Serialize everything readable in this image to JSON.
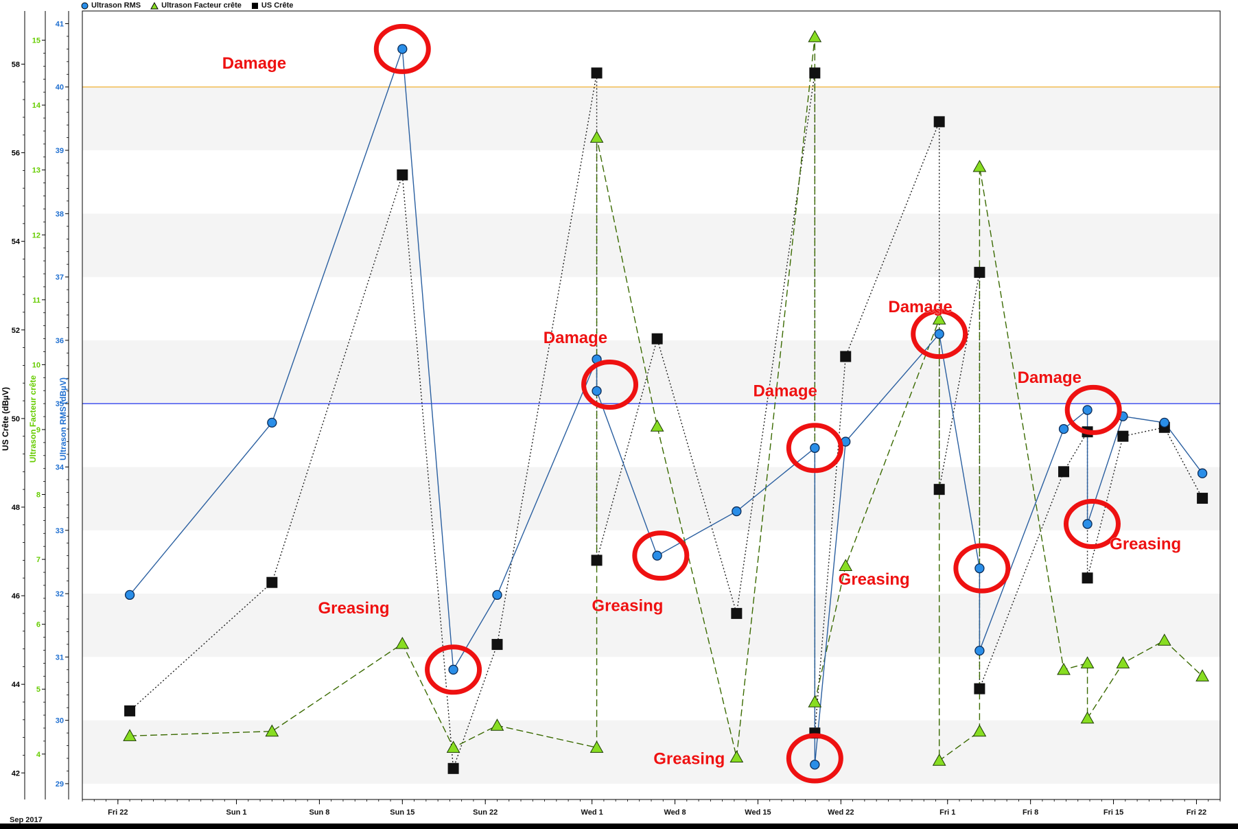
{
  "chart_data": {
    "type": "line",
    "period_label": "Sep 2017",
    "x_ticks": [
      "Fri 22",
      "Sun 1",
      "Sun 8",
      "Sun 15",
      "Sun 22",
      "Wed 1",
      "Wed 8",
      "Wed 15",
      "Wed 22",
      "Fri 1",
      "Fri 8",
      "Fri 15",
      "Fri 22"
    ],
    "x_tick_days": [
      0,
      10,
      17,
      24,
      31,
      40,
      47,
      54,
      61,
      70,
      77,
      84,
      91
    ],
    "xlim": [
      -3,
      93
    ],
    "axes": [
      {
        "key": "crete",
        "label": "US Crête (dBµV)",
        "color": "#000000",
        "ylim": [
          41.4,
          59.2
        ],
        "ticks": [
          42,
          44,
          46,
          48,
          50,
          52,
          54,
          56,
          58
        ]
      },
      {
        "key": "facteur",
        "label": "Ultrason Facteur crête",
        "color": "#66cc00",
        "ylim": [
          3.3,
          15.45
        ],
        "ticks": [
          4,
          5,
          6,
          7,
          8,
          9,
          10,
          11,
          12,
          13,
          14,
          15
        ]
      },
      {
        "key": "rms",
        "label": "Ultrason RMS (dBµV)",
        "color": "#1f6fd0",
        "ylim": [
          28.75,
          41.2
        ],
        "ticks": [
          29,
          30,
          31,
          32,
          33,
          34,
          35,
          36,
          37,
          38,
          39,
          40,
          41
        ]
      }
    ],
    "legend": [
      "Ultrason RMS",
      "Ultrason Facteur crête",
      "US Crête"
    ],
    "thresholds": [
      {
        "axis": "rms",
        "value": 40,
        "color": "#f0b030"
      },
      {
        "axis": "rms",
        "value": 35,
        "color": "#3344ee"
      }
    ],
    "series": [
      {
        "name": "Ultrason RMS",
        "axis": "rms",
        "marker": "circle",
        "color": "#2a8ee8",
        "line": "#2a5fa0",
        "dash": "",
        "points": [
          [
            1,
            31.98
          ],
          [
            13,
            34.7
          ],
          [
            24,
            40.6
          ],
          [
            28.3,
            30.8
          ],
          [
            32,
            31.98
          ],
          [
            40.4,
            35.7
          ],
          [
            40.4,
            35.2
          ],
          [
            45.5,
            32.6
          ],
          [
            52.2,
            33.3
          ],
          [
            58.8,
            34.3
          ],
          [
            58.8,
            29.3
          ],
          [
            61.4,
            34.4
          ],
          [
            69.3,
            36.1
          ],
          [
            72.7,
            32.4
          ],
          [
            72.7,
            31.1
          ],
          [
            79.8,
            34.6
          ],
          [
            81.8,
            34.9
          ],
          [
            81.8,
            33.1
          ],
          [
            84.8,
            34.8
          ],
          [
            88.3,
            34.7
          ],
          [
            91.5,
            33.9
          ]
        ]
      },
      {
        "name": "Ultrason Facteur crête",
        "axis": "facteur",
        "marker": "triangle",
        "color": "#88dd22",
        "line": "#3a6a00",
        "dash": "10,5",
        "points": [
          [
            1,
            4.28
          ],
          [
            13,
            4.35
          ],
          [
            24,
            5.7
          ],
          [
            28.3,
            4.1
          ],
          [
            32,
            4.44
          ],
          [
            40.4,
            4.1
          ],
          [
            40.4,
            13.5
          ],
          [
            45.5,
            9.05
          ],
          [
            52.2,
            3.95
          ],
          [
            58.8,
            15.05
          ],
          [
            58.8,
            4.8
          ],
          [
            61.4,
            6.9
          ],
          [
            69.3,
            10.7
          ],
          [
            69.3,
            3.9
          ],
          [
            72.7,
            4.35
          ],
          [
            72.7,
            13.05
          ],
          [
            79.8,
            5.3
          ],
          [
            81.8,
            5.4
          ],
          [
            81.8,
            4.55
          ],
          [
            84.8,
            5.4
          ],
          [
            88.3,
            5.75
          ],
          [
            91.5,
            5.2
          ]
        ]
      },
      {
        "name": "US Crête",
        "axis": "crete",
        "marker": "square",
        "color": "#111111",
        "line": "#222222",
        "dash": "2,3",
        "points": [
          [
            1,
            43.4
          ],
          [
            13,
            46.3
          ],
          [
            24,
            55.5
          ],
          [
            28.3,
            42.1
          ],
          [
            32,
            44.9
          ],
          [
            40.4,
            57.8
          ],
          [
            40.4,
            46.8
          ],
          [
            45.5,
            51.8
          ],
          [
            52.2,
            45.6
          ],
          [
            58.8,
            57.8
          ],
          [
            58.8,
            42.9
          ],
          [
            61.4,
            51.4
          ],
          [
            69.3,
            56.7
          ],
          [
            69.3,
            48.4
          ],
          [
            72.7,
            53.3
          ],
          [
            72.7,
            43.9
          ],
          [
            79.8,
            48.8
          ],
          [
            81.8,
            49.7
          ],
          [
            81.8,
            46.4
          ],
          [
            84.8,
            49.6
          ],
          [
            88.3,
            49.8
          ],
          [
            91.5,
            48.2
          ]
        ]
      }
    ],
    "annotations": [
      {
        "text": "Damage",
        "day": 11.5,
        "value": 57.9,
        "axis": "crete"
      },
      {
        "text": "Damage",
        "day": 38.6,
        "value": 51.7,
        "axis": "crete"
      },
      {
        "text": "Damage",
        "day": 56.3,
        "value": 50.5,
        "axis": "crete"
      },
      {
        "text": "Damage",
        "day": 67.7,
        "value": 52.4,
        "axis": "crete"
      },
      {
        "text": "Damage",
        "day": 78.6,
        "value": 50.8,
        "axis": "crete"
      },
      {
        "text": "Greasing",
        "day": 19.9,
        "value": 45.6,
        "axis": "crete"
      },
      {
        "text": "Greasing",
        "day": 43.0,
        "value": 45.65,
        "axis": "crete"
      },
      {
        "text": "Greasing",
        "day": 48.2,
        "value": 42.2,
        "axis": "crete"
      },
      {
        "text": "Greasing",
        "day": 63.8,
        "value": 46.25,
        "axis": "crete"
      },
      {
        "text": "Greasing",
        "day": 86.7,
        "value": 47.05,
        "axis": "crete"
      }
    ],
    "highlight_circles": [
      {
        "day": 24,
        "value": 40.6,
        "axis": "rms"
      },
      {
        "day": 28.3,
        "value": 30.8,
        "axis": "rms"
      },
      {
        "day": 41.5,
        "value": 35.3,
        "axis": "rms"
      },
      {
        "day": 45.8,
        "value": 32.6,
        "axis": "rms"
      },
      {
        "day": 58.8,
        "value": 34.3,
        "axis": "rms"
      },
      {
        "day": 58.8,
        "value": 29.4,
        "axis": "rms"
      },
      {
        "day": 69.3,
        "value": 36.1,
        "axis": "rms"
      },
      {
        "day": 72.9,
        "value": 32.4,
        "axis": "rms"
      },
      {
        "day": 82.3,
        "value": 34.9,
        "axis": "rms"
      },
      {
        "day": 82.2,
        "value": 33.1,
        "axis": "rms"
      }
    ]
  }
}
